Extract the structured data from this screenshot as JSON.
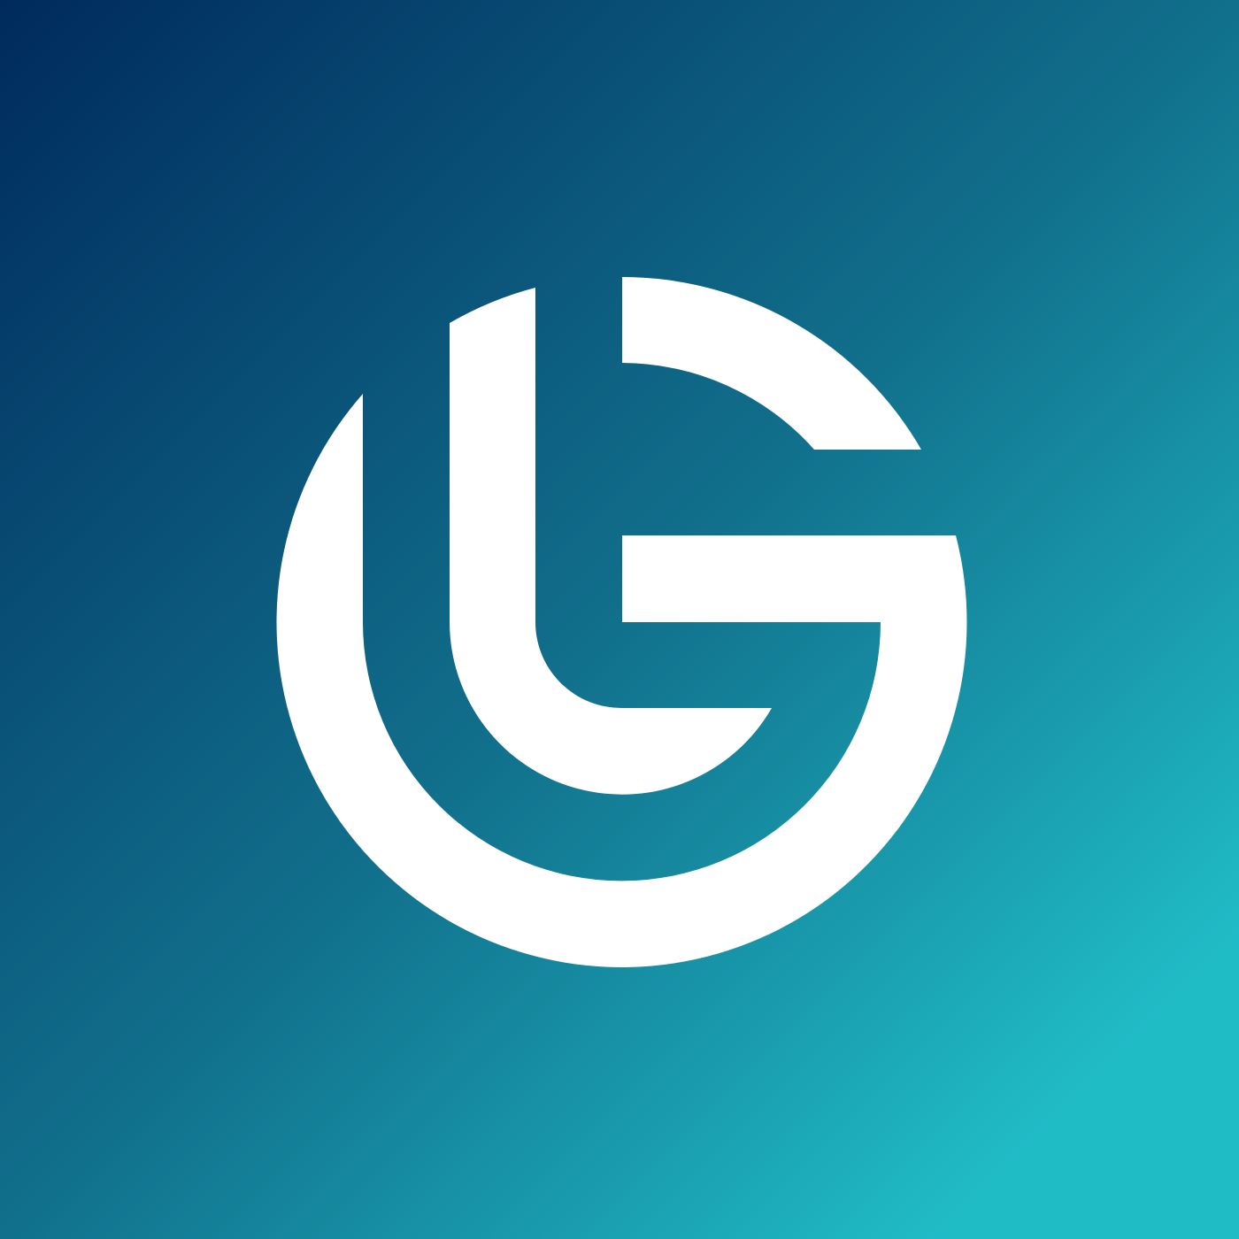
{
  "logo": {
    "name": "G monogram logo",
    "colors": {
      "gradient_start": "#002a5c",
      "gradient_mid": "#11708c",
      "gradient_end": "#20bcc6",
      "mark": "#ffffff"
    }
  }
}
